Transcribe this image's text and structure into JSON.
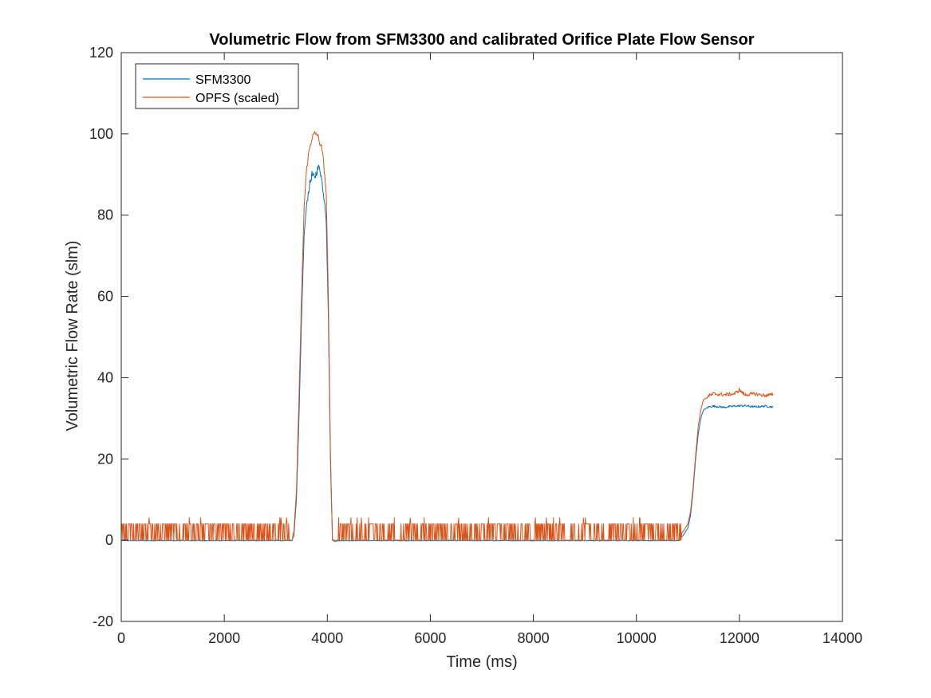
{
  "chart_data": {
    "type": "line",
    "title": "Volumetric Flow from SFM3300 and calibrated Orifice Plate Flow Sensor",
    "xlabel": "Time (ms)",
    "ylabel": "Volumetric Flow Rate (slm)",
    "xlim": [
      0,
      14000
    ],
    "ylim": [
      -20,
      120
    ],
    "xticks": [
      0,
      2000,
      4000,
      6000,
      8000,
      10000,
      12000,
      14000
    ],
    "yticks": [
      -20,
      0,
      20,
      40,
      60,
      80,
      100,
      120
    ],
    "grid": false,
    "legend_position": "top-left",
    "series": [
      {
        "name": "SFM3300",
        "color": "#0072BD",
        "x": [
          0,
          1000,
          2000,
          3000,
          3300,
          3350,
          3400,
          3450,
          3500,
          3550,
          3600,
          3650,
          3700,
          3750,
          3800,
          3850,
          3900,
          3950,
          3980,
          4020,
          4060,
          4100,
          4150,
          4250,
          5000,
          6000,
          7000,
          8000,
          9000,
          10000,
          10700,
          10800,
          10900,
          11000,
          11050,
          11100,
          11150,
          11200,
          11250,
          11300,
          11400,
          11500,
          11700,
          11900,
          12100,
          12300,
          12500,
          12650
        ],
        "y": [
          0,
          0,
          0,
          0,
          0,
          1,
          10,
          30,
          55,
          75,
          83,
          87,
          90,
          89,
          91,
          92,
          88,
          83,
          78,
          55,
          20,
          0,
          -0.3,
          0,
          0,
          0,
          0,
          0,
          0,
          0,
          0,
          0.5,
          1,
          3,
          6,
          12,
          20,
          26,
          30,
          32,
          32.8,
          33,
          32.7,
          33,
          33.1,
          32.8,
          33,
          32.8
        ]
      },
      {
        "name": "OPFS (scaled)",
        "color": "#D95319",
        "x": [
          0,
          1000,
          2000,
          3000,
          3300,
          3350,
          3400,
          3450,
          3500,
          3550,
          3600,
          3650,
          3700,
          3750,
          3800,
          3850,
          3900,
          3950,
          3980,
          4020,
          4060,
          4100,
          4150,
          4250,
          5000,
          6000,
          7000,
          8000,
          9000,
          10000,
          10700,
          10800,
          10900,
          11000,
          11050,
          11100,
          11150,
          11200,
          11250,
          11300,
          11400,
          11500,
          11700,
          11900,
          12000,
          12100,
          12300,
          12500,
          12650
        ],
        "y": [
          0,
          0,
          0,
          0,
          0,
          2,
          12,
          35,
          60,
          82,
          92,
          96,
          99,
          100,
          100,
          98,
          96,
          90,
          85,
          60,
          22,
          0,
          0,
          0,
          0,
          0,
          0,
          0,
          0,
          0,
          0,
          1,
          2,
          4,
          7,
          13,
          21,
          28,
          32,
          34.5,
          35.5,
          36,
          35.8,
          36,
          37,
          35.8,
          36,
          35.6,
          35.8
        ]
      }
    ]
  }
}
